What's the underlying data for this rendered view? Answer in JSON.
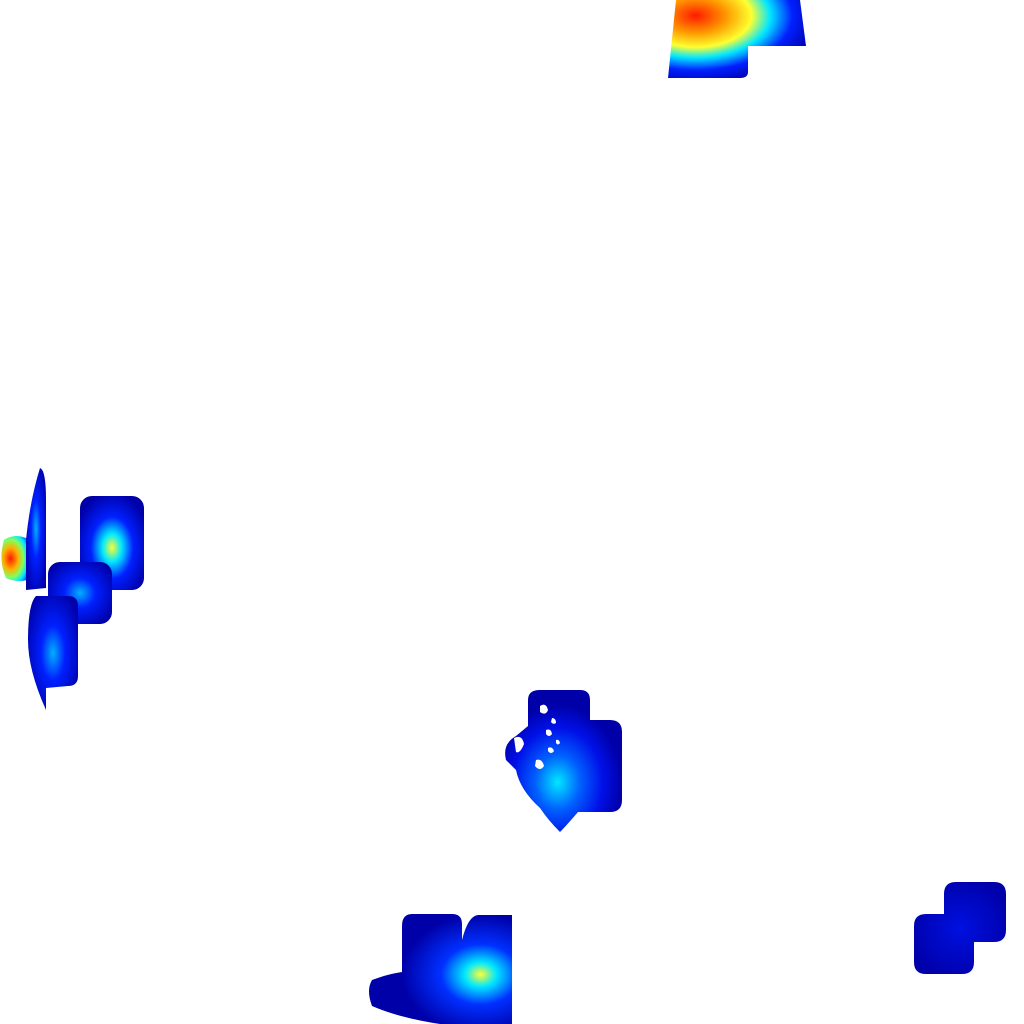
{
  "scene": {
    "background": "#ffffff",
    "colormap": "jet",
    "colors": {
      "deep_blue": "#0000a8",
      "blue": "#0020ff",
      "cyan": "#00e8ff",
      "yellow": "#ffff30",
      "orange": "#ff9a00",
      "red": "#ff1a00"
    },
    "blobs": [
      {
        "name": "blob-top-center",
        "peak_intensity": 0.95
      },
      {
        "name": "blob-left-hotspot",
        "peak_intensity": 0.85
      },
      {
        "name": "blob-left-tall",
        "peak_intensity": 0.6
      },
      {
        "name": "blob-left-middle",
        "peak_intensity": 0.35
      },
      {
        "name": "blob-left-lower",
        "peak_intensity": 0.4
      },
      {
        "name": "blob-left-edge-sliver",
        "peak_intensity": 0.15
      },
      {
        "name": "blob-center",
        "peak_intensity": 0.4
      },
      {
        "name": "blob-bottom-center",
        "peak_intensity": 0.6
      },
      {
        "name": "blob-bottom-right",
        "peak_intensity": 0.15
      }
    ]
  }
}
